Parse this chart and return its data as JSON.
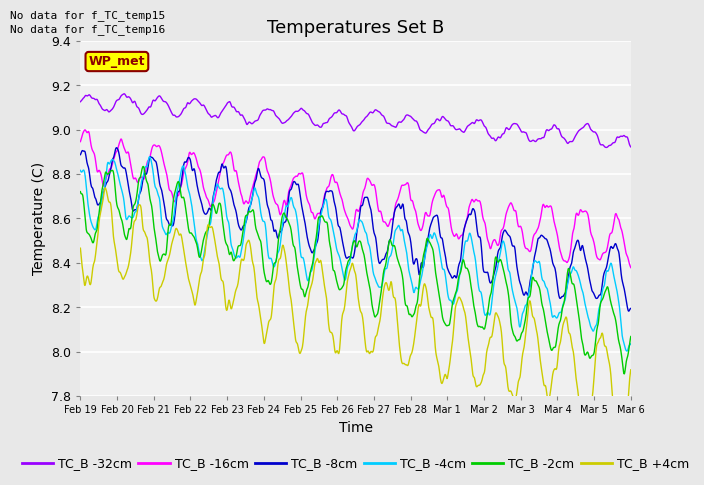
{
  "title": "Temperatures Set B",
  "xlabel": "Time",
  "ylabel": "Temperature (C)",
  "ylim": [
    7.8,
    9.4
  ],
  "annotation_lines": [
    "No data for f_TC_temp15",
    "No data for f_TC_temp16"
  ],
  "wp_met_label": "WP_met",
  "series_colors": {
    "TC_B -32cm": "#9900ff",
    "TC_B -16cm": "#ff00ff",
    "TC_B -8cm": "#0000cc",
    "TC_B -4cm": "#00ccff",
    "TC_B -2cm": "#00cc00",
    "TC_B +4cm": "#cccc00"
  },
  "series_order": [
    "TC_B -32cm",
    "TC_B -16cm",
    "TC_B -8cm",
    "TC_B -4cm",
    "TC_B -2cm",
    "TC_B +4cm"
  ],
  "x_tick_labels": [
    "Feb 19",
    "Feb 20",
    "Feb 21",
    "Feb 22",
    "Feb 23",
    "Feb 24",
    "Feb 25",
    "Feb 26",
    "Feb 27",
    "Feb 28",
    "Mar 1",
    "Mar 2",
    "Mar 3",
    "Mar 4",
    "Mar 5",
    "Mar 6"
  ],
  "n_points": 1600,
  "start_day": 0,
  "end_day": 15.5,
  "background_color": "#e8e8e8",
  "plot_bg_color": "#f0f0f0",
  "grid_color": "white",
  "title_fontsize": 13,
  "axis_fontsize": 10,
  "tick_fontsize": 9,
  "legend_fontsize": 9,
  "linewidth": 1.0
}
